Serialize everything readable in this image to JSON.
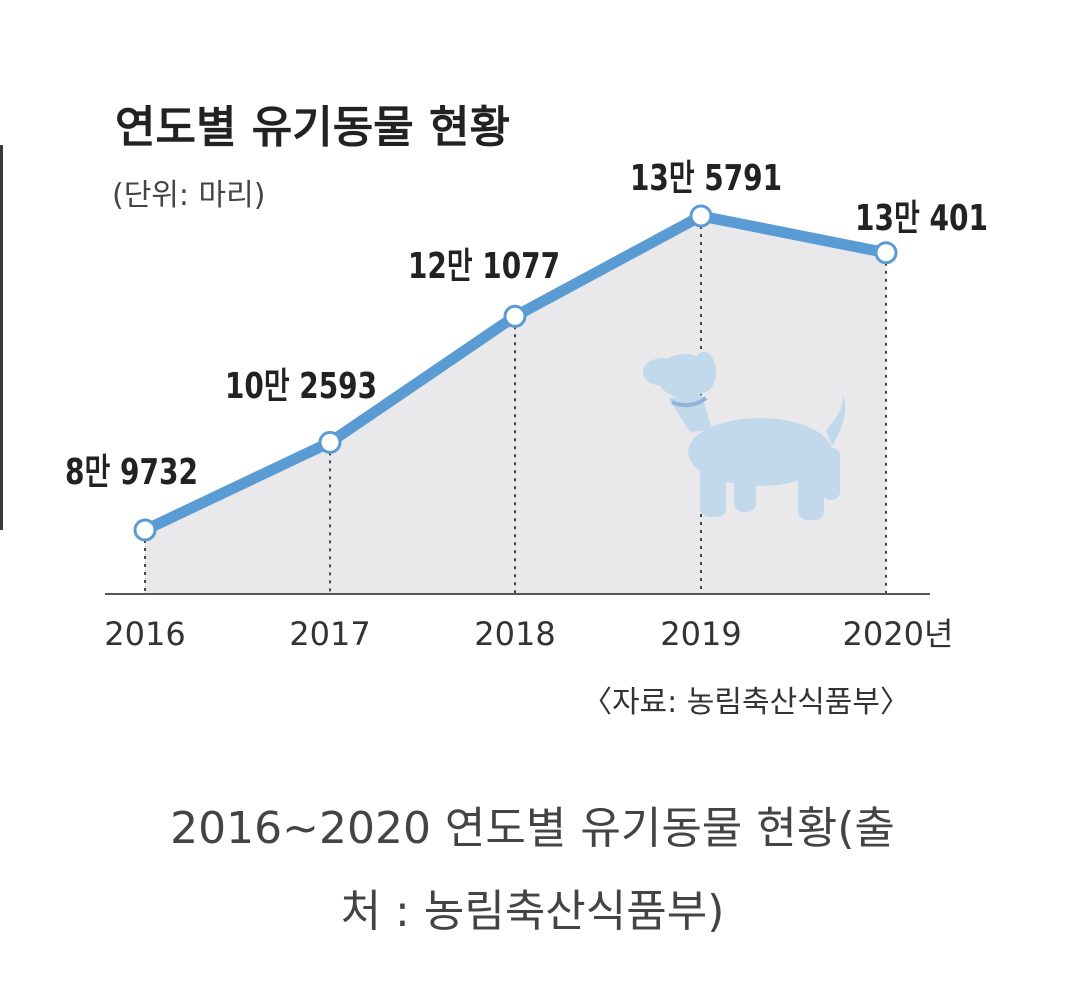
{
  "chart_data": {
    "type": "line",
    "title": "연도별 유기동물 현황",
    "unit": "(단위: 마리)",
    "categories": [
      "2016",
      "2017",
      "2018",
      "2019",
      "2020년"
    ],
    "series": [
      {
        "values": [
          89732,
          102593,
          121077,
          135791,
          130401
        ]
      }
    ],
    "data_labels": [
      "8만 9732",
      "10만 2593",
      "12만 1077",
      "13만 5791",
      "13만 401"
    ],
    "source": "〈자료: 농림축산식품부〉",
    "grid": false,
    "legend": "none"
  },
  "caption": {
    "line1": "2016~2020 연도별 유기동물 현황(출",
    "line2": "처 : 농림축산식품부)"
  },
  "colors": {
    "line": "#5b9bd3",
    "area": "#e9e9ec",
    "dog": "#c2d9ec",
    "text": "#222222"
  },
  "decoration": {
    "icon": "dog-icon"
  }
}
